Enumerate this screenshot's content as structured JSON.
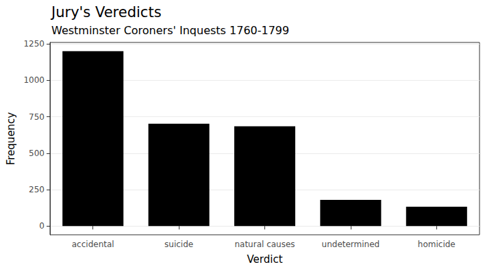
{
  "chart_data": {
    "type": "bar",
    "title": "Jury's Veredicts",
    "subtitle": "Westminster Coroners' Inquests 1760-1799",
    "x_label": "Verdict",
    "y_label": "Frequency",
    "categories": [
      "accidental",
      "suicide",
      "natural causes",
      "undetermined",
      "homicide"
    ],
    "values": [
      1200,
      702,
      685,
      180,
      133
    ],
    "color": "#000000",
    "ylim": [
      -60,
      1260
    ],
    "yticks": [
      0,
      250,
      500,
      750,
      1000,
      1250
    ],
    "grid": true
  }
}
